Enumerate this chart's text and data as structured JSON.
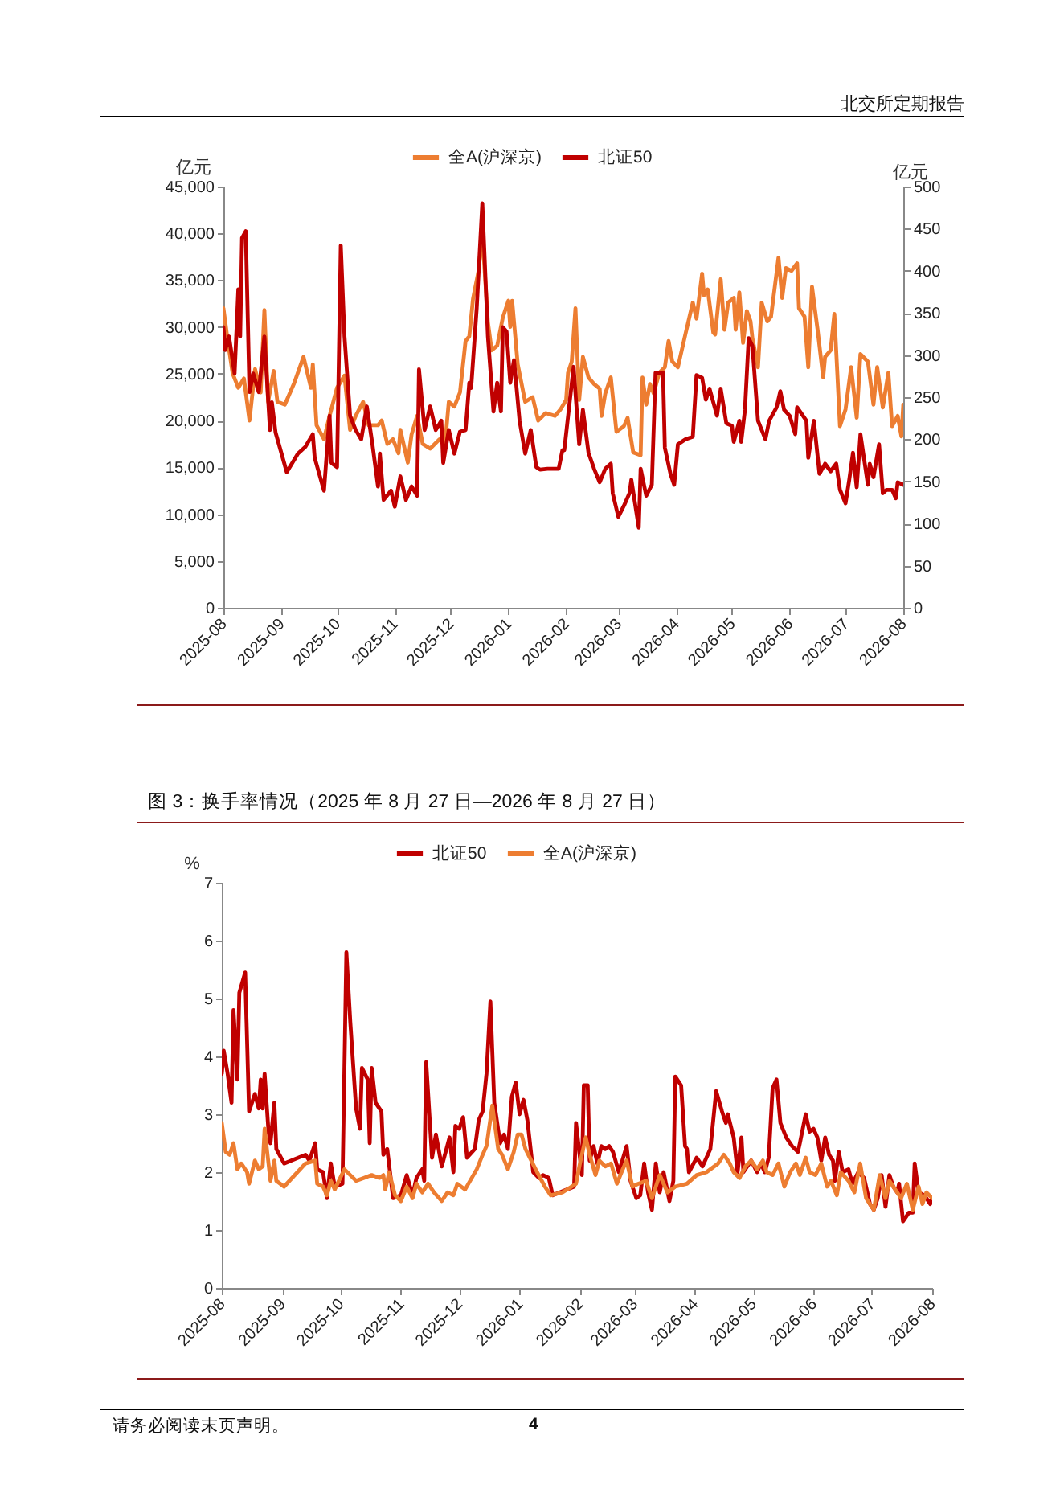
{
  "chart_data": [
    {
      "type": "line",
      "annotations": [
        "北交所定期报告"
      ],
      "ylabel": "亿元",
      "y2label": "亿元",
      "legend": "top",
      "xlim": [
        "2025-08",
        "2026-08"
      ],
      "xticks": [
        "2025-08",
        "2025-09",
        "2025-10",
        "2025-11",
        "2025-12",
        "2026-01",
        "2026-02",
        "2026-03",
        "2026-04",
        "2026-05",
        "2026-06",
        "2026-07",
        "2026-08"
      ],
      "ylim": [
        0,
        45000
      ],
      "yticks": [
        0,
        {
          "value": 5000,
          "label": "5,000"
        },
        {
          "value": 10000,
          "label": "10,000"
        },
        {
          "value": 15000,
          "label": "15,000"
        },
        {
          "value": 20000,
          "label": "20,000"
        },
        {
          "value": 25000,
          "label": "25,000"
        },
        {
          "value": 30000,
          "label": "30,000"
        },
        {
          "value": 35000,
          "label": "35,000"
        },
        {
          "value": 40000,
          "label": "40,000"
        },
        {
          "value": 45000,
          "label": "45,000"
        }
      ],
      "y2lim": [
        0,
        500
      ],
      "y2ticks": [
        0,
        50,
        100,
        150,
        200,
        250,
        300,
        350,
        400,
        450,
        500
      ],
      "series": [
        {
          "name": "全A(沪深京)",
          "color": "#ed7d31",
          "x": [
            "2025-08-01",
            "2025-08-03",
            "2025-08-06",
            "2025-08-09",
            "2025-08-12",
            "2025-08-15",
            "2025-08-18",
            "2025-08-21",
            "2025-08-23",
            "2025-08-25",
            "2025-08-28",
            "2025-08-30",
            "2025-09-03",
            "2025-09-08",
            "2025-09-13",
            "2025-09-17",
            "2025-09-18",
            "2025-09-20",
            "2025-09-24",
            "2025-09-27",
            "2025-10-01",
            "2025-10-05",
            "2025-10-08",
            "2025-10-11",
            "2025-10-15",
            "2025-10-18",
            "2025-10-23",
            "2025-10-25",
            "2025-10-28",
            "2025-10-31",
            "2025-11-03",
            "2025-11-04",
            "2025-11-08",
            "2025-11-10",
            "2025-11-13",
            "2025-11-16",
            "2025-11-20",
            "2025-11-25",
            "2025-11-28",
            "2025-11-30",
            "2025-12-03",
            "2025-12-06",
            "2025-12-09",
            "2025-12-11",
            "2025-12-13",
            "2025-12-16",
            "2025-12-18",
            "2025-12-21",
            "2025-12-23",
            "2025-12-26",
            "2025-12-29",
            "2026-01-01",
            "2026-01-02",
            "2026-01-03",
            "2026-01-06",
            "2026-01-10",
            "2026-01-14",
            "2026-01-17",
            "2026-01-21",
            "2026-01-26",
            "2026-01-29",
            "2026-02-01",
            "2026-02-02",
            "2026-02-04",
            "2026-02-06",
            "2026-02-08",
            "2026-02-10",
            "2026-02-13",
            "2026-02-16",
            "2026-02-19",
            "2026-02-20",
            "2026-02-22",
            "2026-02-25",
            "2026-02-28",
            "2026-03-04",
            "2026-03-06",
            "2026-03-09",
            "2026-03-13",
            "2026-03-14",
            "2026-03-16",
            "2026-03-18",
            "2026-03-20",
            "2026-03-23",
            "2026-03-26",
            "2026-03-28",
            "2026-03-30",
            "2026-04-02",
            "2026-04-06",
            "2026-04-10",
            "2026-04-12",
            "2026-04-15",
            "2026-04-16",
            "2026-04-18",
            "2026-04-21",
            "2026-04-22",
            "2026-04-25",
            "2026-04-27",
            "2026-04-29",
            "2026-05-02",
            "2026-05-03",
            "2026-05-05",
            "2026-05-07",
            "2026-05-09",
            "2026-05-11",
            "2026-05-12",
            "2026-05-15",
            "2026-05-17",
            "2026-05-20",
            "2026-05-22",
            "2026-05-26",
            "2026-05-28",
            "2026-05-30",
            "2026-06-02",
            "2026-06-05",
            "2026-06-06",
            "2026-06-09",
            "2026-06-11",
            "2026-06-13",
            "2026-06-16",
            "2026-06-19",
            "2026-06-20",
            "2026-06-23",
            "2026-06-25",
            "2026-06-28",
            "2026-07-01",
            "2026-07-04",
            "2026-07-07",
            "2026-07-09",
            "2026-07-13",
            "2026-07-16",
            "2026-07-18",
            "2026-07-21",
            "2026-07-24",
            "2026-07-26",
            "2026-07-29",
            "2026-07-31",
            "2026-08-01"
          ],
          "values": [
            32000,
            29000,
            25000,
            23500,
            24500,
            20000,
            25500,
            23000,
            31800,
            22000,
            25300,
            22000,
            21700,
            24000,
            26800,
            23500,
            26000,
            19500,
            18000,
            20500,
            23500,
            24800,
            19000,
            20500,
            22000,
            19500,
            19500,
            20000,
            17500,
            18000,
            16500,
            19000,
            15500,
            18500,
            20500,
            17500,
            17000,
            18000,
            17500,
            22000,
            21500,
            23000,
            28500,
            29000,
            33000,
            36000,
            40000,
            30500,
            27500,
            28000,
            31000,
            32800,
            30000,
            32800,
            26000,
            22000,
            22500,
            20000,
            20800,
            20500,
            21200,
            22200,
            25100,
            26300,
            32000,
            22200,
            26800,
            24600,
            23900,
            23400,
            20500,
            22900,
            24600,
            18800,
            19400,
            20300,
            16600,
            16300,
            24600,
            21700,
            23900,
            22900,
            25100,
            25700,
            28500,
            26300,
            25700,
            29200,
            32600,
            30900,
            35700,
            33400,
            34000,
            29400,
            29200,
            35100,
            29700,
            32600,
            33100,
            29700,
            33700,
            28300,
            31700,
            30600,
            28800,
            25700,
            32600,
            30600,
            31100,
            37400,
            33100,
            36300,
            36000,
            36800,
            32000,
            31100,
            25700,
            34300,
            29700,
            24600,
            26800,
            27500,
            31400,
            19400,
            21200,
            25700,
            20300,
            27100,
            26300,
            21700,
            25700,
            21400,
            25100,
            19400,
            20500,
            18300,
            21700
          ]
        },
        {
          "name": "北证50",
          "color": "#c00000",
          "axis": "y2",
          "x": [
            "2025-08-01",
            "2025-08-02",
            "2025-08-04",
            "2025-08-07",
            "2025-08-09",
            "2025-08-10",
            "2025-08-11",
            "2025-08-13",
            "2025-08-15",
            "2025-08-17",
            "2025-08-20",
            "2025-08-23",
            "2025-08-26",
            "2025-08-27",
            "2025-08-29",
            "2025-09-04",
            "2025-09-10",
            "2025-09-14",
            "2025-09-18",
            "2025-09-19",
            "2025-09-24",
            "2025-09-27",
            "2025-09-28",
            "2025-10-01",
            "2025-10-03",
            "2025-10-05",
            "2025-10-08",
            "2025-10-11",
            "2025-10-14",
            "2025-10-17",
            "2025-10-20",
            "2025-10-23",
            "2025-10-24",
            "2025-10-26",
            "2025-10-30",
            "2025-11-01",
            "2025-11-04",
            "2025-11-07",
            "2025-11-10",
            "2025-11-13",
            "2025-11-14",
            "2025-11-17",
            "2025-11-20",
            "2025-11-23",
            "2025-11-26",
            "2025-11-27",
            "2025-11-30",
            "2025-12-03",
            "2025-12-06",
            "2025-12-09",
            "2025-12-11",
            "2025-12-12",
            "2025-12-15",
            "2025-12-18",
            "2025-12-21",
            "2025-12-24",
            "2025-12-26",
            "2025-12-28",
            "2025-12-29",
            "2025-12-31",
            "2026-01-02",
            "2026-01-04",
            "2026-01-07",
            "2026-01-10",
            "2026-01-13",
            "2026-01-16",
            "2026-01-18",
            "2026-01-22",
            "2026-01-28",
            "2026-01-30",
            "2026-01-31",
            "2026-02-05",
            "2026-02-08",
            "2026-02-10",
            "2026-02-13",
            "2026-02-16",
            "2026-02-19",
            "2026-02-22",
            "2026-02-25",
            "2026-02-26",
            "2026-03-01",
            "2026-03-04",
            "2026-03-07",
            "2026-03-08",
            "2026-03-12",
            "2026-03-13",
            "2026-03-16",
            "2026-03-19",
            "2026-03-21",
            "2026-03-25",
            "2026-03-26",
            "2026-03-29",
            "2026-03-31",
            "2026-04-02",
            "2026-04-06",
            "2026-04-10",
            "2026-04-12",
            "2026-04-15",
            "2026-04-17",
            "2026-04-19",
            "2026-04-23",
            "2026-04-25",
            "2026-04-28",
            "2026-05-01",
            "2026-05-02",
            "2026-05-05",
            "2026-05-06",
            "2026-05-08",
            "2026-05-10",
            "2026-05-12",
            "2026-05-15",
            "2026-05-19",
            "2026-05-21",
            "2026-05-25",
            "2026-05-27",
            "2026-05-29",
            "2026-06-01",
            "2026-06-04",
            "2026-06-05",
            "2026-06-10",
            "2026-06-11",
            "2026-06-14",
            "2026-06-17",
            "2026-06-20",
            "2026-06-23",
            "2026-06-26",
            "2026-06-28",
            "2026-07-01",
            "2026-07-03",
            "2026-07-05",
            "2026-07-07",
            "2026-07-09",
            "2026-07-13",
            "2026-07-14",
            "2026-07-16",
            "2026-07-19",
            "2026-07-21",
            "2026-07-23",
            "2026-07-26",
            "2026-07-28",
            "2026-07-29",
            "2026-08-01"
          ],
          "values": [
            333,
            306,
            322,
            278,
            378,
            322,
            439,
            447,
            256,
            278,
            256,
            322,
            211,
            244,
            208,
            161,
            183,
            191,
            206,
            178,
            139,
            228,
            172,
            167,
            430,
            322,
            228,
            211,
            200,
            239,
            194,
            144,
            183,
            128,
            139,
            120,
            156,
            128,
            144,
            133,
            283,
            211,
            239,
            211,
            222,
            172,
            211,
            183,
            209,
            211,
            267,
            261,
            356,
            480,
            322,
            233,
            267,
            233,
            333,
            328,
            267,
            294,
            222,
            183,
            211,
            167,
            164,
            165,
            165,
            187,
            187,
            286,
            194,
            235,
            184,
            165,
            149,
            165,
            171,
            136,
            108,
            121,
            136,
            152,
            95,
            165,
            133,
            146,
            279,
            279,
            190,
            159,
            146,
            194,
            200,
            203,
            276,
            273,
            247,
            260,
            228,
            260,
            219,
            216,
            197,
            222,
            197,
            235,
            320,
            311,
            222,
            200,
            222,
            238,
            257,
            235,
            228,
            206,
            238,
            222,
            178,
            222,
            159,
            171,
            162,
            171,
            140,
            124,
            152,
            184,
            143,
            206,
            146,
            171,
            155,
            194,
            136,
            140,
            140,
            130,
            149,
            146
          ]
        }
      ]
    },
    {
      "type": "line",
      "title": "图 3：换手率情况（2025 年 8 月 27 日—2026 年 8 月 27 日）",
      "ylabel": "%",
      "legend": "top",
      "annotations": [
        "请务必阅读末页声明。",
        "4"
      ],
      "xlim": [
        "2025-08",
        "2026-08"
      ],
      "xticks": [
        "2025-08",
        "2025-09",
        "2025-10",
        "2025-11",
        "2025-12",
        "2026-01",
        "2026-02",
        "2026-03",
        "2026-04",
        "2026-05",
        "2026-06",
        "2026-07",
        "2026-08"
      ],
      "ylim": [
        0,
        7
      ],
      "yticks": [
        0,
        1,
        2,
        3,
        4,
        5,
        6,
        7
      ],
      "series": [
        {
          "name": "北证50",
          "color": "#c00000",
          "x": [
            "2025-08-01",
            "2025-08-02",
            "2025-08-04",
            "2025-08-06",
            "2025-08-07",
            "2025-08-09",
            "2025-08-10",
            "2025-08-13",
            "2025-08-15",
            "2025-08-18",
            "2025-08-20",
            "2025-08-21",
            "2025-08-22",
            "2025-08-23",
            "2025-08-25",
            "2025-08-26",
            "2025-08-28",
            "2025-08-29",
            "2025-09-02",
            "2025-09-13",
            "2025-09-15",
            "2025-09-18",
            "2025-09-19",
            "2025-09-22",
            "2025-09-24",
            "2025-09-26",
            "2025-09-28",
            "2025-10-02",
            "2025-10-04",
            "2025-10-06",
            "2025-10-09",
            "2025-10-11",
            "2025-10-12",
            "2025-10-15",
            "2025-10-16",
            "2025-10-17",
            "2025-10-19",
            "2025-10-22",
            "2025-10-23",
            "2025-10-25",
            "2025-10-28",
            "2025-11-01",
            "2025-11-04",
            "2025-11-07",
            "2025-11-09",
            "2025-11-12",
            "2025-11-13",
            "2025-11-14",
            "2025-11-17",
            "2025-11-19",
            "2025-11-22",
            "2025-11-26",
            "2025-11-28",
            "2025-11-29",
            "2025-12-01",
            "2025-12-03",
            "2025-12-05",
            "2025-12-09",
            "2025-12-11",
            "2025-12-13",
            "2025-12-15",
            "2025-12-17",
            "2025-12-19",
            "2025-12-22",
            "2025-12-24",
            "2025-12-26",
            "2025-12-28",
            "2025-12-30",
            "2026-01-01",
            "2026-01-03",
            "2026-01-05",
            "2026-01-08",
            "2026-01-11",
            "2026-01-13",
            "2026-01-16",
            "2026-01-18",
            "2026-01-29",
            "2026-01-30",
            "2026-02-02",
            "2026-02-03",
            "2026-02-05",
            "2026-02-06",
            "2026-02-08",
            "2026-02-10",
            "2026-02-12",
            "2026-02-14",
            "2026-02-16",
            "2026-02-18",
            "2026-02-21",
            "2026-02-25",
            "2026-02-27",
            "2026-03-02",
            "2026-03-04",
            "2026-03-06",
            "2026-03-08",
            "2026-03-10",
            "2026-03-12",
            "2026-03-14",
            "2026-03-16",
            "2026-03-19",
            "2026-03-21",
            "2026-03-22",
            "2026-03-25",
            "2026-03-27",
            "2026-03-28",
            "2026-03-29",
            "2026-04-02",
            "2026-04-05",
            "2026-04-09",
            "2026-04-12",
            "2026-04-15",
            "2026-04-17",
            "2026-04-18",
            "2026-04-21",
            "2026-04-23",
            "2026-04-25",
            "2026-04-26",
            "2026-04-30",
            "2026-05-03",
            "2026-05-05",
            "2026-05-07",
            "2026-05-09",
            "2026-05-11",
            "2026-05-13",
            "2026-05-15",
            "2026-05-18",
            "2026-05-21",
            "2026-05-24",
            "2026-05-25",
            "2026-05-28",
            "2026-05-30",
            "2026-06-01",
            "2026-06-03",
            "2026-06-05",
            "2026-06-07",
            "2026-06-09",
            "2026-06-11",
            "2026-06-12",
            "2026-06-14",
            "2026-06-16",
            "2026-06-19",
            "2026-06-21",
            "2026-06-24",
            "2026-06-27",
            "2026-06-30",
            "2026-07-02",
            "2026-07-04",
            "2026-07-06",
            "2026-07-08",
            "2026-07-10",
            "2026-07-12",
            "2026-07-14",
            "2026-07-15",
            "2026-07-17",
            "2026-07-20",
            "2026-07-22",
            "2026-07-23",
            "2026-07-25",
            "2026-07-28",
            "2026-07-29",
            "2026-07-31",
            "2026-08-01"
          ],
          "values": [
            3.7,
            4.1,
            3.7,
            3.2,
            4.8,
            3.6,
            5.1,
            5.45,
            3.05,
            3.35,
            3.1,
            3.6,
            3.1,
            3.7,
            2.7,
            2.5,
            3.2,
            2.4,
            2.15,
            2.3,
            2.2,
            2.5,
            2.05,
            2.0,
            1.55,
            2.15,
            1.75,
            1.8,
            5.8,
            4.6,
            3.1,
            2.75,
            3.8,
            3.6,
            2.5,
            3.8,
            3.2,
            3.05,
            2.3,
            2.4,
            1.55,
            1.6,
            1.95,
            1.6,
            1.9,
            2.05,
            1.85,
            3.9,
            2.25,
            2.65,
            2.1,
            2.6,
            2.0,
            2.8,
            2.75,
            2.95,
            2.25,
            2.4,
            2.9,
            3.05,
            3.7,
            4.95,
            3.2,
            2.5,
            2.65,
            2.4,
            3.3,
            3.55,
            3.0,
            3.25,
            2.9,
            2.0,
            1.9,
            1.95,
            1.9,
            1.6,
            1.75,
            2.85,
            1.95,
            3.5,
            3.5,
            2.2,
            2.45,
            2.15,
            2.45,
            2.4,
            2.45,
            2.35,
            2.0,
            2.45,
            1.85,
            1.55,
            1.6,
            2.15,
            1.65,
            1.35,
            2.15,
            1.65,
            2.0,
            1.5,
            1.85,
            3.65,
            3.5,
            2.45,
            2.4,
            2.0,
            2.25,
            2.1,
            2.4,
            3.4,
            3.05,
            2.85,
            3.0,
            2.6,
            2.0,
            2.6,
            2.0,
            2.2,
            2.0,
            2.15,
            2.0,
            2.25,
            3.45,
            3.6,
            2.85,
            2.6,
            2.45,
            2.35,
            2.5,
            3.0,
            2.7,
            2.75,
            2.6,
            2.2,
            2.6,
            2.3,
            2.2,
            1.85,
            2.35,
            2.0,
            2.05,
            1.8,
            2.0,
            1.9,
            1.45,
            1.35,
            1.55,
            1.95,
            1.4,
            1.95,
            1.75,
            1.65,
            1.8,
            1.15,
            1.3,
            1.3,
            2.15,
            1.65,
            1.6,
            1.55,
            1.45,
            1.55
          ]
        },
        {
          "name": "全A(沪深京)",
          "color": "#ed7d31",
          "x": [
            "2025-08-01",
            "2025-08-03",
            "2025-08-05",
            "2025-08-07",
            "2025-08-09",
            "2025-08-11",
            "2025-08-14",
            "2025-08-15",
            "2025-08-18",
            "2025-08-20",
            "2025-08-22",
            "2025-08-23",
            "2025-08-25",
            "2025-08-26",
            "2025-08-28",
            "2025-08-29",
            "2025-09-02",
            "2025-09-13",
            "2025-09-18",
            "2025-09-19",
            "2025-09-22",
            "2025-09-24",
            "2025-09-26",
            "2025-09-28",
            "2025-10-03",
            "2025-10-06",
            "2025-10-09",
            "2025-10-13",
            "2025-10-17",
            "2025-10-21",
            "2025-10-23",
            "2025-10-24",
            "2025-10-26",
            "2025-10-29",
            "2025-11-01",
            "2025-11-04",
            "2025-11-07",
            "2025-11-09",
            "2025-11-12",
            "2025-11-15",
            "2025-11-18",
            "2025-11-22",
            "2025-11-25",
            "2025-11-28",
            "2025-11-30",
            "2025-12-04",
            "2025-12-10",
            "2025-12-13",
            "2025-12-15",
            "2025-12-18",
            "2025-12-21",
            "2025-12-23",
            "2025-12-26",
            "2025-12-29",
            "2025-12-31",
            "2026-01-02",
            "2026-01-04",
            "2026-01-07",
            "2026-01-10",
            "2026-01-14",
            "2026-01-17",
            "2026-01-23",
            "2026-01-30",
            "2026-02-01",
            "2026-02-04",
            "2026-02-06",
            "2026-02-09",
            "2026-02-11",
            "2026-02-14",
            "2026-02-17",
            "2026-02-20",
            "2026-02-23",
            "2026-02-25",
            "2026-02-28",
            "2026-03-03",
            "2026-03-07",
            "2026-03-10",
            "2026-03-14",
            "2026-03-18",
            "2026-03-22",
            "2026-03-28",
            "2026-04-02",
            "2026-04-07",
            "2026-04-13",
            "2026-04-16",
            "2026-04-19",
            "2026-04-21",
            "2026-04-24",
            "2026-04-27",
            "2026-04-30",
            "2026-05-03",
            "2026-05-06",
            "2026-05-08",
            "2026-05-11",
            "2026-05-14",
            "2026-05-17",
            "2026-05-20",
            "2026-05-23",
            "2026-05-25",
            "2026-05-28",
            "2026-05-30",
            "2026-06-02",
            "2026-06-05",
            "2026-06-08",
            "2026-06-10",
            "2026-06-13",
            "2026-06-15",
            "2026-06-19",
            "2026-06-22",
            "2026-06-25",
            "2026-06-28",
            "2026-07-02",
            "2026-07-05",
            "2026-07-08",
            "2026-07-10",
            "2026-07-14",
            "2026-07-16",
            "2026-07-19",
            "2026-07-22",
            "2026-07-25",
            "2026-07-27",
            "2026-07-29",
            "2026-08-01"
          ],
          "values": [
            2.85,
            2.35,
            2.3,
            2.5,
            2.05,
            2.15,
            2.0,
            1.8,
            2.2,
            2.05,
            2.1,
            2.75,
            2.15,
            1.85,
            2.2,
            1.85,
            1.75,
            2.15,
            2.2,
            1.8,
            1.75,
            1.6,
            1.85,
            1.7,
            2.05,
            1.95,
            1.85,
            1.9,
            1.95,
            1.9,
            1.95,
            1.7,
            2.0,
            1.6,
            1.5,
            1.75,
            1.55,
            1.8,
            1.65,
            1.8,
            1.65,
            1.5,
            1.65,
            1.6,
            1.8,
            1.7,
            2.05,
            2.3,
            2.45,
            3.15,
            2.4,
            2.3,
            2.05,
            2.35,
            2.65,
            2.65,
            2.4,
            2.2,
            2.0,
            1.75,
            1.6,
            1.65,
            1.8,
            2.15,
            2.6,
            2.3,
            1.95,
            2.2,
            2.1,
            2.15,
            1.8,
            2.05,
            2.2,
            1.75,
            1.8,
            1.85,
            1.55,
            1.95,
            1.65,
            1.75,
            1.8,
            1.95,
            2.0,
            2.15,
            2.3,
            2.15,
            2.0,
            1.9,
            2.1,
            2.2,
            2.05,
            2.2,
            2.0,
            1.95,
            2.15,
            1.75,
            2.0,
            2.15,
            1.95,
            2.25,
            2.0,
            1.95,
            2.15,
            1.75,
            1.85,
            1.6,
            2.0,
            1.85,
            1.65,
            2.15,
            1.55,
            1.35,
            1.95,
            1.55,
            1.85,
            1.65,
            1.55,
            1.8,
            1.35,
            1.75,
            1.45,
            1.65,
            1.55
          ]
        }
      ]
    }
  ]
}
